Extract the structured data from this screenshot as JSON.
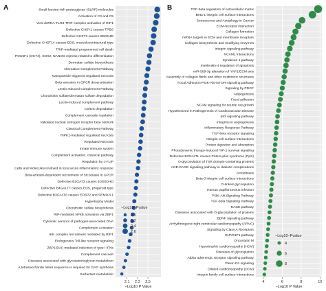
{
  "chart_data": [
    {
      "type": "scatter",
      "panel_label": "A",
      "color": "#1d5396",
      "xlabel": "−Log10 P Value",
      "ylabel": "",
      "xlim": [
        1.88,
        2.75
      ],
      "x_ticks": [
        "2.1",
        "2.3",
        "2.5"
      ],
      "x_tick_values": [
        2.1,
        2.3,
        2.5
      ],
      "legend": {
        "title": "−Log10−Pvalue",
        "position": "bottom-right",
        "size_labels": [
          "2.0",
          "2.2",
          "2.4",
          "2.6"
        ],
        "size_values": [
          2.0,
          2.2,
          2.4,
          2.6
        ]
      },
      "categories": [
        "Small leucine-rich proteoglycan (SLRP) molecules",
        "Activation of C3 and C5",
        "Viral dsRNA-TLR3-TRIF complex activation of RIP1",
        "Defective CHSY1 causes TPBS",
        "Defective CHST3 causes SEDCJD",
        "Defective CHST14 causes EDS, musculocontractural type",
        "TRIF-mediated programmed cell death",
        "POU5F1 (OCT4), SOX2, NANOG repress related to differentiation",
        "Dermatan sulfate biosynthesis",
        "Alternative Complement Pathway",
        "Nanoparticle triggered regulated necrosis",
        "Beta-arrestins in GPCR desensitization",
        "Lectin Induced Complement Pathway",
        "Chondroitin sulfate/dermatan sulfate degradation",
        "Lectin-induced complement pathway",
        "CS/DS degradation",
        "Complement cascade regulation",
        "Validated nuclear estrogen receptor beta network",
        "Classical Complement Pathway",
        "RIPK1-mediated regulated necrosis",
        "Regulated Necrosis",
        "Innate immune system",
        "Complement activation, classical pathway",
        "Regulation by c-FLIP",
        "Cells and Molecules involved in local acute inflammatory response",
        "Beta-arrestin-dependent recruitment of Src kinase in GPCR",
        "Defective B3GAT3 causes JDSSDHD",
        "Defective B4GALT7 causes EDS, progeroid type",
        "Defective B3GALT6 causes EDSP2 and SEMDJL1",
        "Hypertrophy Model",
        "Chondroitin sulfate biosynthesis",
        "RIP-mediated NFkB activation via ZBP1",
        "Cytosolic sensors of pathogen-associated DNA",
        "Complement Activation",
        "IKK complex recruitment mediated by RIP1",
        "Endogenous Toll-like receptor signaling",
        "ZBP1(DAI) mediated induction of type I IFNs",
        "Complement cascade",
        "Diseases associated with glycosaminoglycan metabolism",
        "A tetrasaccharide linker sequence is required for GAG synthesis",
        "Surfactant metabolism"
      ],
      "values": [
        2.68,
        2.67,
        2.65,
        2.62,
        2.61,
        2.6,
        2.56,
        2.53,
        2.52,
        2.5,
        2.48,
        2.47,
        2.45,
        2.44,
        2.43,
        2.42,
        2.41,
        2.4,
        2.38,
        2.37,
        2.36,
        2.35,
        2.33,
        2.32,
        2.31,
        2.29,
        2.28,
        2.27,
        2.26,
        2.24,
        2.23,
        2.21,
        2.2,
        2.19,
        2.17,
        2.15,
        2.13,
        2.1,
        2.07,
        2.04,
        2.0
      ]
    },
    {
      "type": "scatter",
      "panel_label": "B",
      "color": "#2e8b4a",
      "xlabel": "−Log10 P Value",
      "ylabel": "",
      "xlim": [
        3.2,
        10.2
      ],
      "x_ticks": [
        "4",
        "6",
        "8",
        "10"
      ],
      "x_tick_values": [
        4,
        6,
        8,
        10
      ],
      "legend": {
        "title": "−Log10−Pvalue",
        "position": "bottom-right",
        "size_labels": [
          "4",
          "6",
          "8"
        ],
        "size_values": [
          4,
          6,
          8
        ]
      },
      "categories": [
        "TGF-beta regulation of extracellular matrix",
        "Beta-1 integrin cell surface interactions",
        "Senescence and Autophagy in Cancer",
        "ECM-receptor interaction",
        "Collagen formation",
        "mRNA targets in ECM and membrane receptors",
        "Collagen biosynthesis and modifying enzymes",
        "Integrin signaling pathway",
        "NCAM1 interactions",
        "Syndecan 1 pathway",
        "Interleukin-4 regulation of apoptosis",
        "miR-509-3p alteration of YAP1/ECM axis",
        "Assembly of collagen fibrils and other multimeric structures",
        "Focal Adhesion-PI3K-Akt-mTOR-signaling pathway",
        "Signaling by PDGF",
        "Adipogenesis",
        "Focal adhesion",
        "NCAM signaling for neurite out-growth",
        "Hypothesized in Pathogenesis of Cardiovascular Disease",
        "p53 signaling pathway",
        "Integrins in angiogenesis",
        "Inflammatory Response Pathway",
        "TGF-beta receptor signaling",
        "Integrin cell surface interactions",
        "Protein digestion and absorption",
        "Photodynamic therapy-induced HIF-1 survival signaling",
        "Defective B3GALTL causes Peters-plus syndrome (PpS)",
        "O-glycosylation of TSR domain-containing proteins",
        "AGE-RAGE signaling pathway in diabetic complications",
        "Amoebiasis",
        "Beta-3 integrin cell surface interactions",
        "O-linked glycosylation",
        "Human papillomavirus infection",
        "PI3K-Akt Signaling Pathway",
        "TGF-beta Signaling Pathway",
        "RAGE pathway",
        "Diseases associated with O-glycosylation of proteins",
        "BDNF signaling pathway",
        "Arrhythmogenic right ventricular cardiomyopathy (ARVC)",
        "Signaling by Class A Receptors",
        "S1P/S1P1 pathway",
        "Oncostatin M",
        "Hypertrophic cardiomyopathy (HCM)",
        "Diseases of glycosylation",
        "Alpha adrenergic receptor signaling pathway",
        "Plexin D1 signaling",
        "Dilated cardiomyopathy (DCM)",
        "Integrin family cell surface interactions"
      ],
      "values": [
        9.8,
        9.2,
        8.1,
        7.7,
        7.4,
        7.2,
        7.0,
        6.8,
        6.6,
        6.5,
        6.4,
        6.3,
        6.2,
        6.1,
        6.0,
        5.9,
        5.8,
        5.7,
        5.6,
        5.5,
        5.45,
        5.4,
        5.35,
        5.3,
        5.25,
        5.2,
        5.15,
        5.1,
        5.05,
        5.0,
        4.95,
        4.9,
        4.85,
        4.8,
        4.75,
        4.7,
        4.65,
        4.6,
        4.55,
        4.5,
        4.45,
        4.4,
        4.35,
        4.3,
        4.25,
        4.2,
        4.15,
        4.1
      ]
    }
  ]
}
